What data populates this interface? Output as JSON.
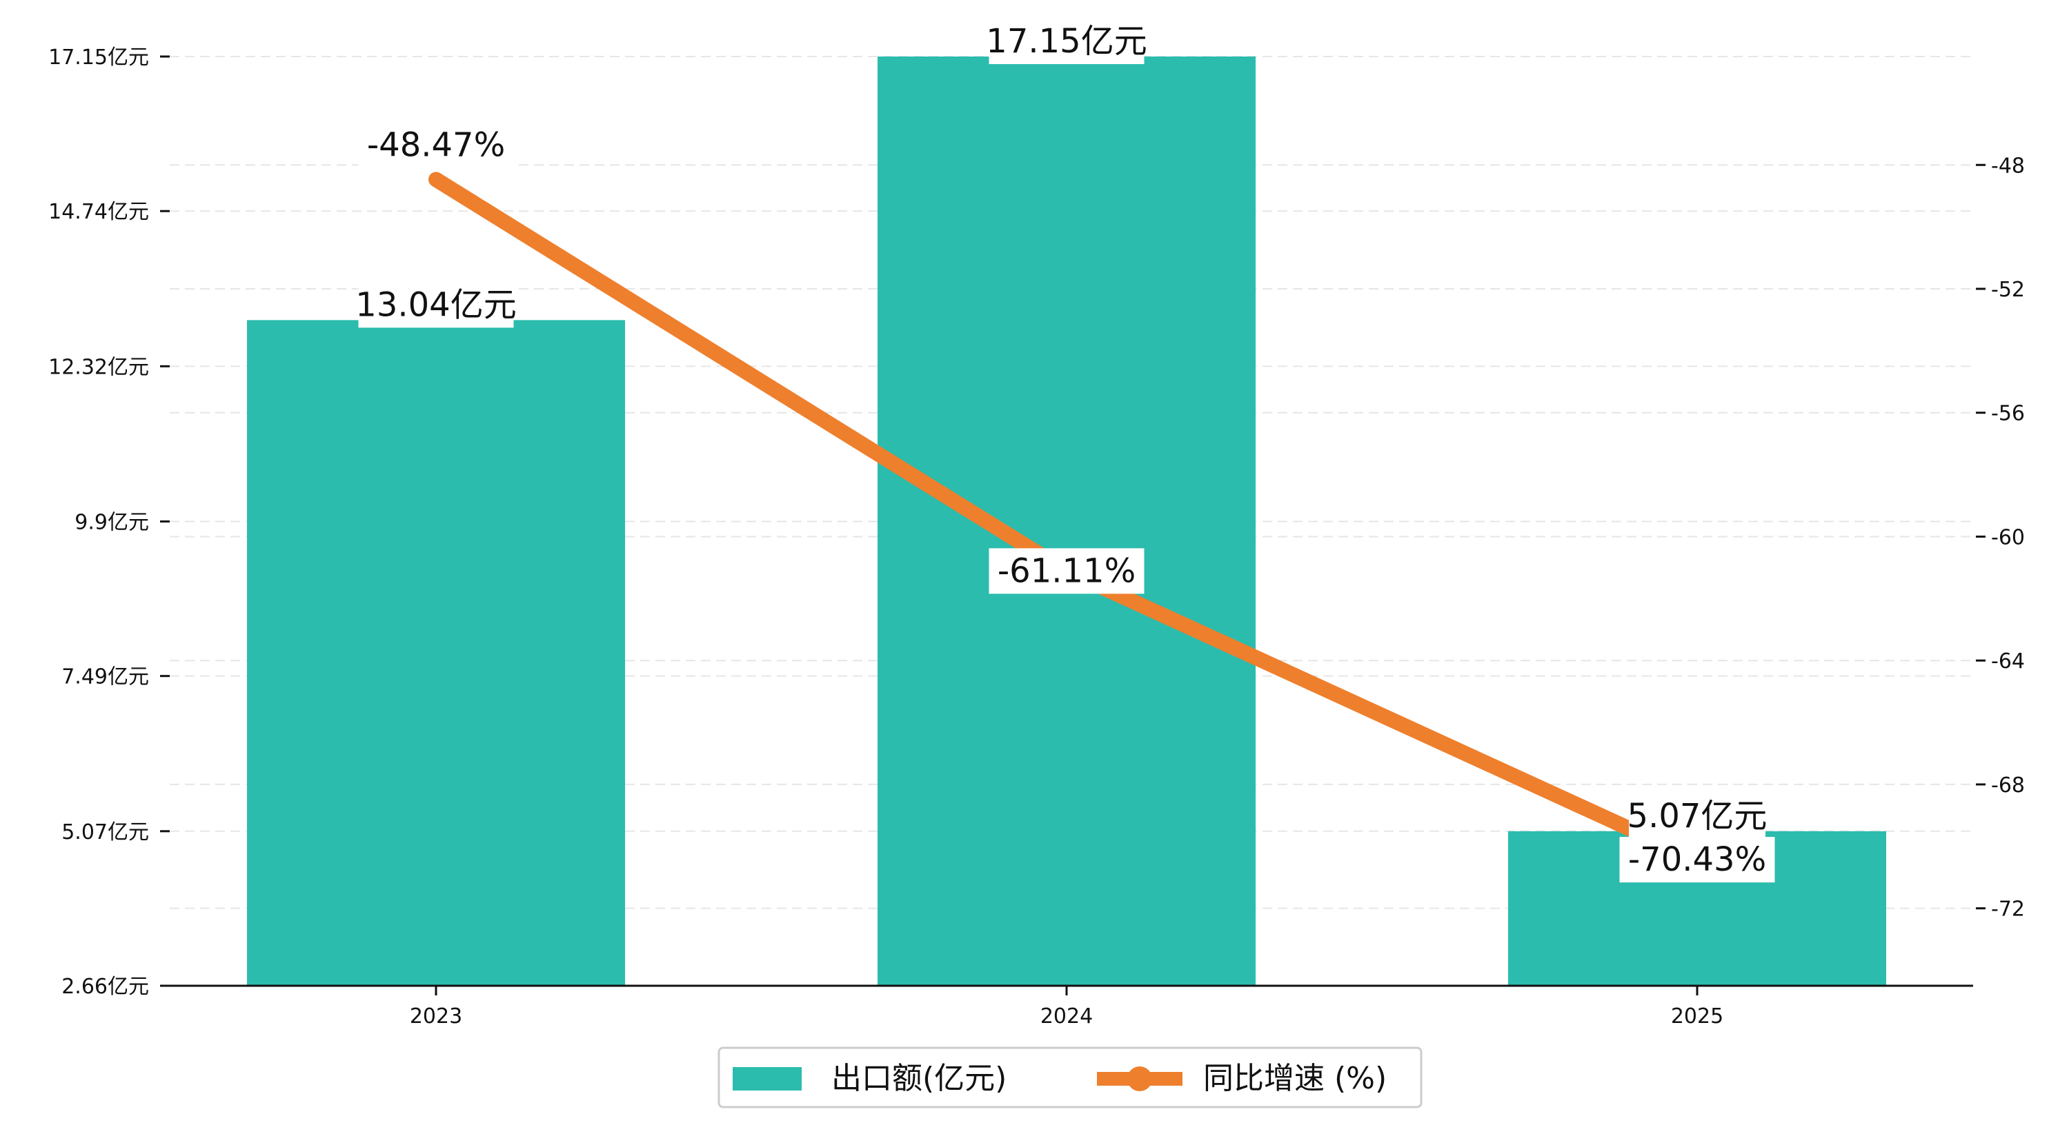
{
  "colors": {
    "bar": "#2bbcad",
    "line": "#ee7f2d",
    "axis": "#111111",
    "grid": "#e6e6e6",
    "label_bg": "#ffffff"
  },
  "chart_data": {
    "type": "bar",
    "categories": [
      "2023",
      "2024",
      "2025"
    ],
    "series": [
      {
        "name": "出口额(亿元)",
        "type": "bar",
        "axis": "left",
        "values": [
          13.04,
          17.15,
          5.07
        ],
        "labels": [
          "13.04亿元",
          "17.15亿元",
          "5.07亿元"
        ]
      },
      {
        "name": "同比增速 (%)",
        "type": "line",
        "axis": "right",
        "values": [
          -48.47,
          -61.11,
          -70.43
        ],
        "labels": [
          "-48.47%",
          "-61.11%",
          "-70.43%"
        ]
      }
    ],
    "left_axis": {
      "ylim": [
        2.66,
        17.15
      ],
      "ticks": [
        2.66,
        5.07,
        7.49,
        9.9,
        12.32,
        14.74,
        17.15
      ],
      "tick_labels": [
        "2.66亿元",
        "5.07亿元",
        "7.49亿元",
        "9.9亿元",
        "12.32亿元",
        "14.74亿元",
        "17.15亿元"
      ]
    },
    "right_axis": {
      "ylim": [
        -74.5,
        -44.5
      ],
      "ticks": [
        -48,
        -52,
        -56,
        -60,
        -64,
        -68,
        -72
      ],
      "tick_labels": [
        "-48",
        "-52",
        "-56",
        "-60",
        "-64",
        "-68",
        "-72"
      ]
    },
    "grid": true,
    "legend": "bottom-center"
  }
}
